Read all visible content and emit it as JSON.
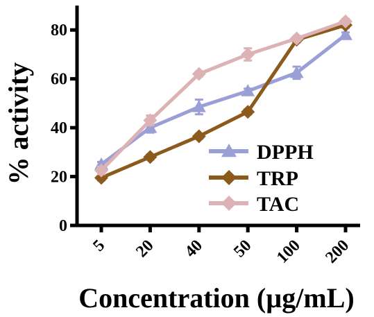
{
  "chart_data": {
    "type": "line",
    "categories": [
      "5",
      "20",
      "40",
      "50",
      "100",
      "200"
    ],
    "xlabel": "Concentration (µg/mL)",
    "ylabel": "% activity",
    "ylim": [
      0,
      90
    ],
    "yticks": [
      "0",
      "20",
      "40",
      "60",
      "80"
    ],
    "ytick_values": [
      0,
      20,
      40,
      60,
      80
    ],
    "grid": false,
    "legend_position": "lower-right",
    "series": [
      {
        "name": "DPPH",
        "values": [
          25,
          40,
          48.5,
          55,
          62.5,
          78
        ],
        "errors": [
          1,
          2,
          3,
          1,
          2.5,
          1
        ],
        "color": "#9a9fd6",
        "marker": "triangle"
      },
      {
        "name": "TRP",
        "values": [
          19.5,
          28,
          36.5,
          46.5,
          76,
          82
        ],
        "errors": [
          1,
          1,
          1,
          1,
          1,
          1
        ],
        "color": "#8b5a1c",
        "marker": "diamond"
      },
      {
        "name": "TAC",
        "values": [
          22.5,
          43,
          62,
          70,
          76.5,
          83.5
        ],
        "errors": [
          1.5,
          2,
          1,
          2.5,
          1,
          1
        ],
        "color": "#dcb2b5",
        "marker": "diamond"
      }
    ]
  }
}
